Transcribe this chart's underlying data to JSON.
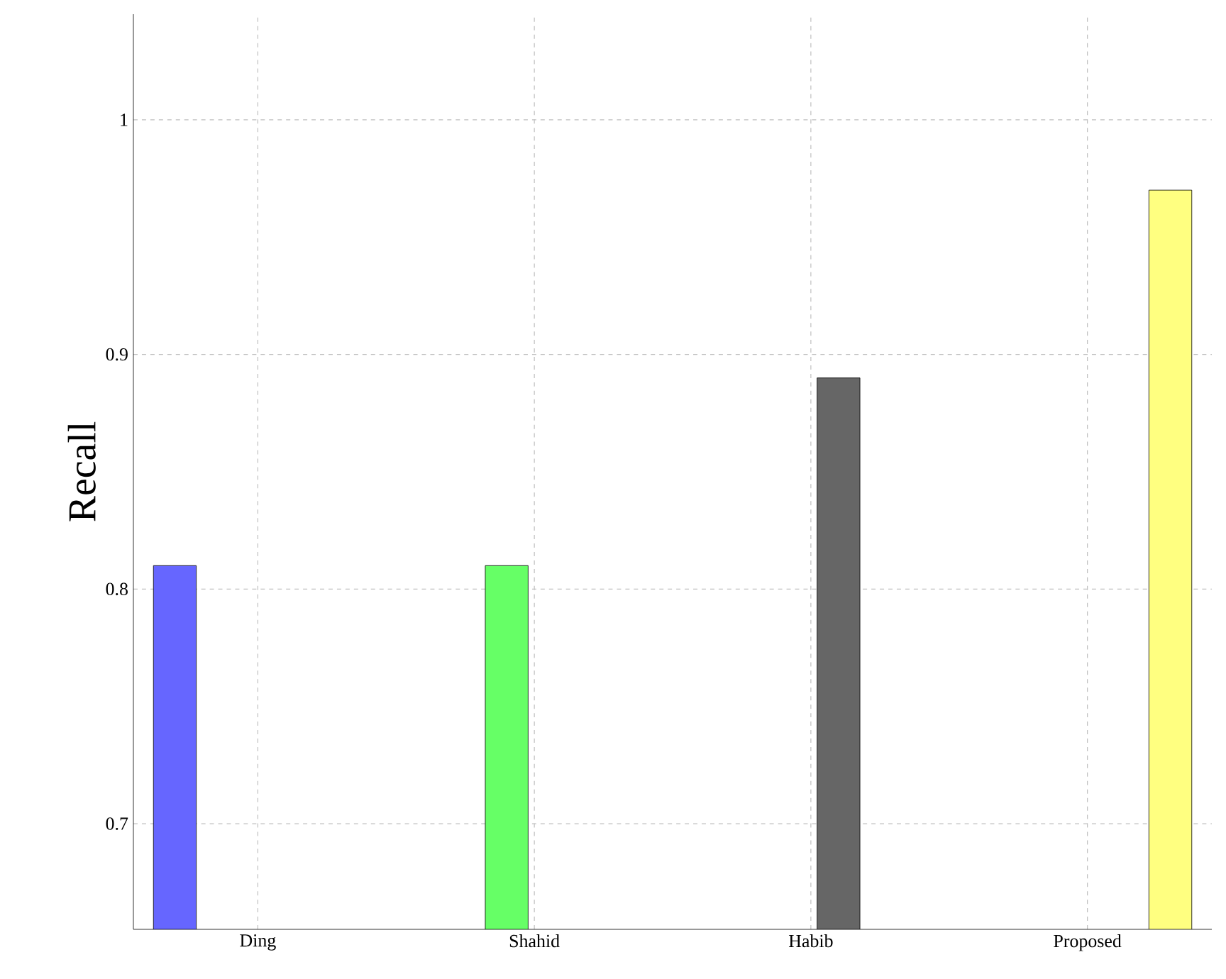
{
  "chart_data": {
    "type": "bar",
    "ylabel": "Recall",
    "categories": [
      "Ding",
      "Shahid",
      "Habib",
      "Proposed"
    ],
    "series": [
      {
        "color": "#6666ff",
        "values": [
          0.81,
          null,
          null,
          null
        ]
      },
      {
        "color": "#66ff66",
        "values": [
          null,
          0.81,
          null,
          null
        ]
      },
      {
        "color": "#666666",
        "values": [
          null,
          null,
          0.89,
          null
        ]
      },
      {
        "color": "#ffff80",
        "values": [
          null,
          null,
          null,
          0.97
        ]
      }
    ],
    "ylim": [
      0.655,
      1.045
    ],
    "yticks": [
      0.7,
      0.8,
      0.9,
      1
    ],
    "grid": true
  }
}
